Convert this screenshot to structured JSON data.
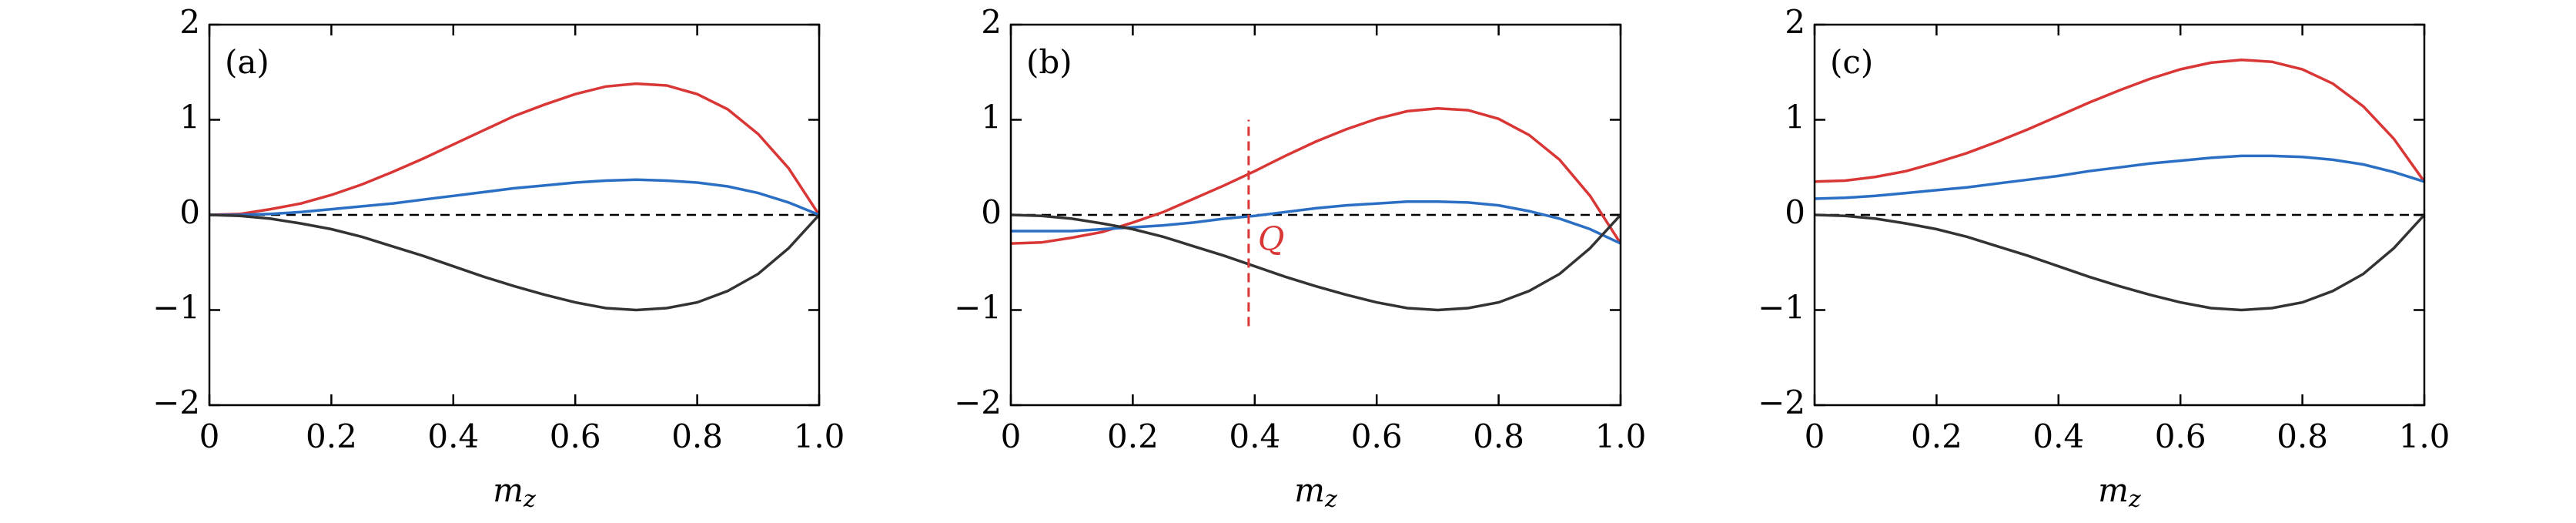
{
  "chart_data": [
    {
      "type": "line",
      "panel_label": "(a)",
      "xlabel": {
        "base": "m",
        "sub": "z"
      },
      "x": [
        0,
        0.05,
        0.1,
        0.15,
        0.2,
        0.25,
        0.3,
        0.35,
        0.4,
        0.45,
        0.5,
        0.55,
        0.6,
        0.65,
        0.7,
        0.75,
        0.8,
        0.85,
        0.9,
        0.95,
        1
      ],
      "series": [
        {
          "color": "#d93636",
          "values": [
            0,
            0.01,
            0.06,
            0.12,
            0.21,
            0.32,
            0.45,
            0.59,
            0.74,
            0.89,
            1.04,
            1.16,
            1.27,
            1.35,
            1.38,
            1.36,
            1.27,
            1.11,
            0.85,
            0.49,
            0
          ]
        },
        {
          "color": "#2a6fc4",
          "values": [
            0,
            0,
            0.01,
            0.03,
            0.06,
            0.09,
            0.12,
            0.16,
            0.2,
            0.24,
            0.28,
            0.31,
            0.34,
            0.36,
            0.37,
            0.36,
            0.34,
            0.3,
            0.23,
            0.13,
            0
          ]
        },
        {
          "color": "#333333",
          "values": [
            0,
            -0.01,
            -0.04,
            -0.09,
            -0.15,
            -0.23,
            -0.33,
            -0.43,
            -0.54,
            -0.65,
            -0.75,
            -0.84,
            -0.92,
            -0.98,
            -1,
            -0.98,
            -0.92,
            -0.8,
            -0.62,
            -0.35,
            0
          ]
        }
      ],
      "xlim": [
        0,
        1
      ],
      "xticks": [
        0,
        0.2,
        0.4,
        0.6,
        0.8,
        {
          "value": 1,
          "label": "1.0"
        }
      ],
      "ylim": [
        -2,
        2
      ],
      "yticks": [
        {
          "value": -2,
          "label": "−2"
        },
        {
          "value": -1,
          "label": "−1"
        },
        0,
        1,
        2
      ],
      "zero_line": true
    },
    {
      "type": "line",
      "panel_label": "(b)",
      "xlabel": {
        "base": "m",
        "sub": "z"
      },
      "x": [
        0,
        0.05,
        0.1,
        0.15,
        0.2,
        0.25,
        0.3,
        0.35,
        0.4,
        0.45,
        0.5,
        0.55,
        0.6,
        0.65,
        0.7,
        0.75,
        0.8,
        0.85,
        0.9,
        0.95,
        1
      ],
      "series": [
        {
          "color": "#d93636",
          "values": [
            -0.3,
            -0.29,
            -0.24,
            -0.18,
            -0.08,
            0.03,
            0.17,
            0.31,
            0.46,
            0.62,
            0.77,
            0.9,
            1.01,
            1.09,
            1.12,
            1.1,
            1.01,
            0.84,
            0.58,
            0.2,
            -0.3
          ]
        },
        {
          "color": "#2a6fc4",
          "values": [
            -0.17,
            -0.17,
            -0.17,
            -0.15,
            -0.13,
            -0.11,
            -0.08,
            -0.04,
            -0.01,
            0.03,
            0.07,
            0.1,
            0.12,
            0.14,
            0.14,
            0.13,
            0.1,
            0.04,
            -0.04,
            -0.15,
            -0.3
          ]
        },
        {
          "color": "#333333",
          "values": [
            0,
            -0.01,
            -0.04,
            -0.09,
            -0.15,
            -0.23,
            -0.33,
            -0.43,
            -0.54,
            -0.65,
            -0.75,
            -0.84,
            -0.92,
            -0.98,
            -1,
            -0.98,
            -0.92,
            -0.8,
            -0.62,
            -0.35,
            0
          ]
        }
      ],
      "annotation": {
        "text": "Q",
        "color": "#d93636",
        "x": 0.39,
        "y_range": [
          -1.17,
          1
        ]
      },
      "xlim": [
        0,
        1
      ],
      "xticks": [
        0,
        0.2,
        0.4,
        0.6,
        0.8,
        {
          "value": 1,
          "label": "1.0"
        }
      ],
      "ylim": [
        -2,
        2
      ],
      "yticks": [
        {
          "value": -2,
          "label": "−2"
        },
        {
          "value": -1,
          "label": "−1"
        },
        0,
        1,
        2
      ],
      "zero_line": true
    },
    {
      "type": "line",
      "panel_label": "(c)",
      "xlabel": {
        "base": "m",
        "sub": "z"
      },
      "x": [
        0,
        0.05,
        0.1,
        0.15,
        0.2,
        0.25,
        0.3,
        0.35,
        0.4,
        0.45,
        0.5,
        0.55,
        0.6,
        0.65,
        0.7,
        0.75,
        0.8,
        0.85,
        0.9,
        0.95,
        1
      ],
      "series": [
        {
          "color": "#d93636",
          "values": [
            0.35,
            0.36,
            0.4,
            0.46,
            0.55,
            0.65,
            0.77,
            0.9,
            1.04,
            1.18,
            1.31,
            1.43,
            1.53,
            1.6,
            1.63,
            1.61,
            1.53,
            1.38,
            1.14,
            0.8,
            0.35
          ]
        },
        {
          "color": "#2a6fc4",
          "values": [
            0.17,
            0.18,
            0.2,
            0.23,
            0.26,
            0.29,
            0.33,
            0.37,
            0.41,
            0.46,
            0.5,
            0.54,
            0.57,
            0.6,
            0.62,
            0.62,
            0.61,
            0.58,
            0.53,
            0.45,
            0.35
          ]
        },
        {
          "color": "#333333",
          "values": [
            0,
            -0.01,
            -0.04,
            -0.09,
            -0.15,
            -0.23,
            -0.33,
            -0.43,
            -0.54,
            -0.65,
            -0.75,
            -0.84,
            -0.92,
            -0.98,
            -1,
            -0.98,
            -0.92,
            -0.8,
            -0.62,
            -0.35,
            0
          ]
        }
      ],
      "xlim": [
        0,
        1
      ],
      "xticks": [
        0,
        0.2,
        0.4,
        0.6,
        0.8,
        {
          "value": 1,
          "label": "1.0"
        }
      ],
      "ylim": [
        -2,
        2
      ],
      "yticks": [
        {
          "value": -2,
          "label": "−2"
        },
        {
          "value": -1,
          "label": "−1"
        },
        0,
        1,
        2
      ],
      "zero_line": true
    }
  ]
}
